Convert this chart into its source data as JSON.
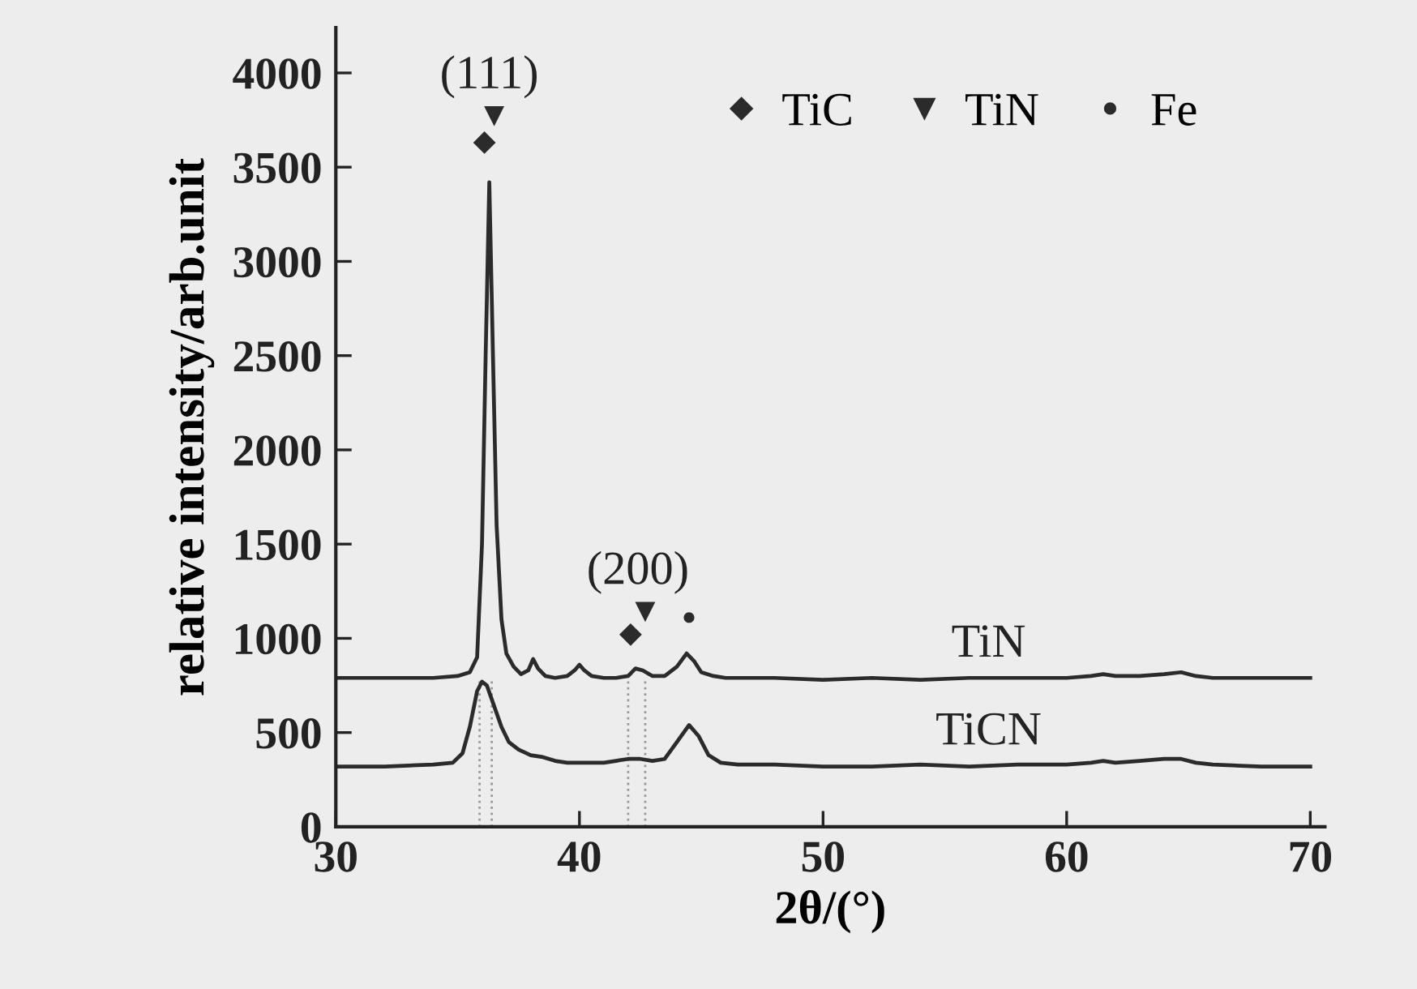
{
  "chart_data": {
    "type": "line",
    "xlabel": "2θ/(°)",
    "ylabel": "relative intensity/arb.unit",
    "xlim": [
      30,
      70.6
    ],
    "xticks": [
      30,
      40,
      50,
      60,
      70
    ],
    "ylim": [
      0,
      4240
    ],
    "yticks": [
      0,
      500,
      1000,
      1500,
      2000,
      2500,
      3000,
      3500,
      4000
    ],
    "grid": false,
    "legend": "top right",
    "line_style": "solid",
    "series": [
      {
        "name": "TiN",
        "color": "#2b2b2b",
        "x": [
          30.0,
          32.0,
          34.0,
          35.0,
          35.5,
          35.8,
          36.0,
          36.15,
          36.3,
          36.45,
          36.6,
          36.8,
          37.0,
          37.3,
          37.6,
          37.9,
          38.1,
          38.3,
          38.6,
          39.0,
          39.5,
          39.8,
          40.0,
          40.2,
          40.5,
          41.0,
          41.5,
          42.0,
          42.3,
          42.6,
          43.0,
          43.5,
          44.0,
          44.4,
          44.7,
          45.0,
          45.5,
          46.0,
          48.0,
          50.0,
          52.0,
          54.0,
          56.0,
          58.0,
          60.0,
          61.0,
          61.5,
          62.0,
          63.0,
          64.0,
          64.7,
          65.3,
          66.0,
          68.0,
          70.0
        ],
        "values": [
          790,
          790,
          790,
          800,
          820,
          900,
          1500,
          2500,
          3420,
          2500,
          1600,
          1100,
          920,
          850,
          810,
          830,
          890,
          840,
          800,
          790,
          800,
          830,
          860,
          830,
          800,
          790,
          790,
          800,
          840,
          830,
          800,
          800,
          850,
          920,
          880,
          820,
          800,
          790,
          790,
          780,
          790,
          780,
          790,
          790,
          790,
          800,
          810,
          800,
          800,
          810,
          820,
          800,
          790,
          790,
          790
        ]
      },
      {
        "name": "TiCN",
        "color": "#2b2b2b",
        "x": [
          30.0,
          32.0,
          34.0,
          34.8,
          35.2,
          35.5,
          35.8,
          36.0,
          36.2,
          36.5,
          36.8,
          37.1,
          37.5,
          38.0,
          38.5,
          39.0,
          39.5,
          40.0,
          40.5,
          41.0,
          41.5,
          42.0,
          42.5,
          43.0,
          43.5,
          44.0,
          44.5,
          44.9,
          45.3,
          45.8,
          46.5,
          48.0,
          50.0,
          52.0,
          54.0,
          56.0,
          58.0,
          60.0,
          61.0,
          61.5,
          62.0,
          63.0,
          64.0,
          64.7,
          65.3,
          66.0,
          68.0,
          70.0
        ],
        "values": [
          320,
          320,
          330,
          340,
          390,
          530,
          720,
          770,
          750,
          640,
          530,
          450,
          410,
          380,
          370,
          350,
          340,
          340,
          340,
          340,
          350,
          360,
          360,
          350,
          360,
          450,
          540,
          480,
          380,
          340,
          330,
          330,
          320,
          320,
          330,
          320,
          330,
          330,
          340,
          350,
          340,
          350,
          360,
          360,
          340,
          330,
          320,
          320
        ]
      },
      {
        "name": "TiC",
        "type": "scatter",
        "marker": "diamond",
        "color": "#2b2b2b",
        "x": [
          36.1,
          42.1
        ],
        "values": [
          3630,
          1020
        ]
      },
      {
        "name": "TiN",
        "type": "scatter",
        "marker": "triangle_down",
        "color": "#2b2b2b",
        "x": [
          36.5,
          42.7
        ],
        "values": [
          3770,
          1140
        ]
      },
      {
        "name": "Fe",
        "type": "scatter",
        "marker": "circle",
        "color": "#2b2b2b",
        "x": [
          44.5
        ],
        "values": [
          1110
        ]
      }
    ],
    "ref_lines": [
      {
        "axis": "x",
        "value": 35.9,
        "color": "#9a9a9a",
        "line_style": "dotted"
      },
      {
        "axis": "x",
        "value": 36.4,
        "color": "#9a9a9a",
        "line_style": "dotted"
      },
      {
        "axis": "x",
        "value": 42.0,
        "color": "#9a9a9a",
        "line_style": "dotted"
      },
      {
        "axis": "x",
        "value": 42.7,
        "color": "#9a9a9a",
        "line_style": "dotted"
      }
    ],
    "annotations": [
      "(111)",
      "(200)"
    ]
  }
}
